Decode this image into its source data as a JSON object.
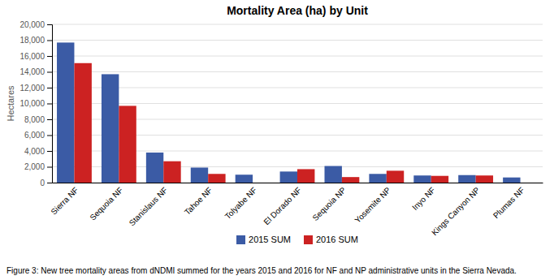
{
  "chart_data": {
    "type": "bar",
    "title": "Mortality Area (ha) by Unit",
    "ylabel": "Hectares",
    "categories": [
      "Sierra NF",
      "Sequoia NF",
      "Stanislaus NF",
      "Tahoe NF",
      "Tolyabe NF",
      "El Dorado NF",
      "Sequoia NP",
      "Yosemite NP",
      "Inyo NF",
      "Kings Canyon NP",
      "Plumas NF"
    ],
    "series": [
      {
        "name": "2015 SUM",
        "color": "#3B5BA5",
        "values": [
          17700,
          13700,
          3800,
          1900,
          1000,
          1400,
          2100,
          1100,
          900,
          950,
          650
        ]
      },
      {
        "name": "2016 SUM",
        "color": "#CC2222",
        "values": [
          15100,
          9700,
          2700,
          1100,
          0,
          1700,
          700,
          1500,
          850,
          900,
          0
        ]
      }
    ],
    "ylim": [
      0,
      20000
    ],
    "yticks": [
      0,
      {
        "value": 2000,
        "label": "2,000"
      },
      {
        "value": 4000,
        "label": "4,000"
      },
      {
        "value": 6000,
        "label": "6,000"
      },
      {
        "value": 8000,
        "label": "8,000"
      },
      {
        "value": 10000,
        "label": "10,000"
      },
      {
        "value": 12000,
        "label": "12,000"
      },
      {
        "value": 14000,
        "label": "14,000"
      },
      {
        "value": 16000,
        "label": "16,000"
      },
      {
        "value": 18000,
        "label": "18,000"
      },
      {
        "value": 20000,
        "label": "20,000"
      }
    ],
    "grid": true,
    "legend": "bottom",
    "caption": "Figure 3: New tree mortality areas from dNDMI summed for the years 2015 and 2016 for NF and NP administrative units in the Sierra Nevada."
  }
}
